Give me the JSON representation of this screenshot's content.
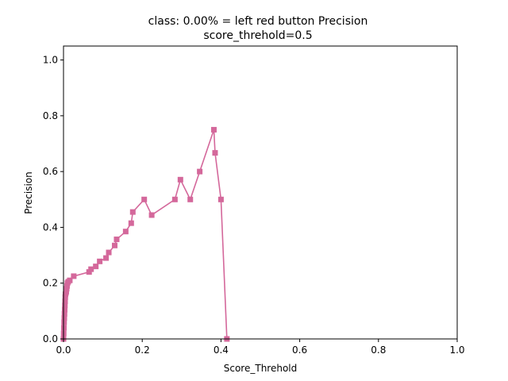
{
  "chart_data": {
    "type": "line",
    "title_line1": "class: 0.00% = left red button Precision",
    "title_line2": "score_threhold=0.5",
    "xlabel": "Score_Threhold",
    "ylabel": "Precision",
    "xlim": [
      0.0,
      1.0
    ],
    "ylim": [
      0.0,
      1.05
    ],
    "xticks": [
      "0.0",
      "0.2",
      "0.4",
      "0.6",
      "0.8",
      "1.0"
    ],
    "yticks": [
      "0.0",
      "0.2",
      "0.4",
      "0.6",
      "0.8",
      "1.0"
    ],
    "grid": false,
    "legend": "none",
    "series": [
      {
        "color": "#d4689b",
        "marker": "square",
        "x": [
          0.0,
          0.0005,
          0.001,
          0.0015,
          0.002,
          0.0025,
          0.003,
          0.0035,
          0.004,
          0.0045,
          0.005,
          0.006,
          0.007,
          0.008,
          0.009,
          0.01,
          0.012,
          0.016,
          0.026,
          0.065,
          0.07,
          0.082,
          0.092,
          0.108,
          0.115,
          0.13,
          0.135,
          0.158,
          0.172,
          0.176,
          0.205,
          0.224,
          0.283,
          0.297,
          0.322,
          0.346,
          0.382,
          0.385,
          0.4,
          0.415
        ],
        "y": [
          0.0,
          0.02,
          0.04,
          0.06,
          0.075,
          0.09,
          0.105,
          0.12,
          0.135,
          0.15,
          0.16,
          0.165,
          0.17,
          0.18,
          0.19,
          0.2,
          0.205,
          0.21,
          0.225,
          0.24,
          0.25,
          0.26,
          0.278,
          0.29,
          0.31,
          0.335,
          0.357,
          0.385,
          0.415,
          0.455,
          0.5,
          0.444,
          0.5,
          0.571,
          0.5,
          0.6,
          0.75,
          0.667,
          0.5,
          0.0
        ]
      }
    ]
  }
}
